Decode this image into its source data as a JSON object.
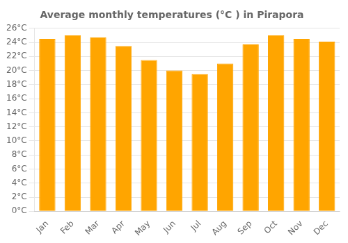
{
  "chart_data": {
    "type": "bar",
    "title": "Average monthly temperatures (°C ) in Pirapora",
    "categories": [
      "Jan",
      "Feb",
      "Mar",
      "Apr",
      "May",
      "Jun",
      "Jul",
      "Aug",
      "Sep",
      "Oct",
      "Nov",
      "Dec"
    ],
    "values": [
      24.5,
      25.0,
      24.7,
      23.5,
      21.5,
      20.0,
      19.5,
      21.0,
      23.7,
      25.0,
      24.5,
      24.1
    ],
    "color": "#FFA500",
    "ylim": [
      0,
      26
    ],
    "yticks": [
      {
        "value": 0,
        "label": "0°C"
      },
      {
        "value": 2,
        "label": "2°C"
      },
      {
        "value": 4,
        "label": "4°C"
      },
      {
        "value": 6,
        "label": "6°C"
      },
      {
        "value": 8,
        "label": "8°C"
      },
      {
        "value": 10,
        "label": "10°C"
      },
      {
        "value": 12,
        "label": "12°C"
      },
      {
        "value": 14,
        "label": "14°C"
      },
      {
        "value": 16,
        "label": "16°C"
      },
      {
        "value": 18,
        "label": "18°C"
      },
      {
        "value": 20,
        "label": "20°C"
      },
      {
        "value": 22,
        "label": "22°C"
      },
      {
        "value": 24,
        "label": "24°C"
      },
      {
        "value": 26,
        "label": "26°C"
      }
    ],
    "grid": true
  }
}
